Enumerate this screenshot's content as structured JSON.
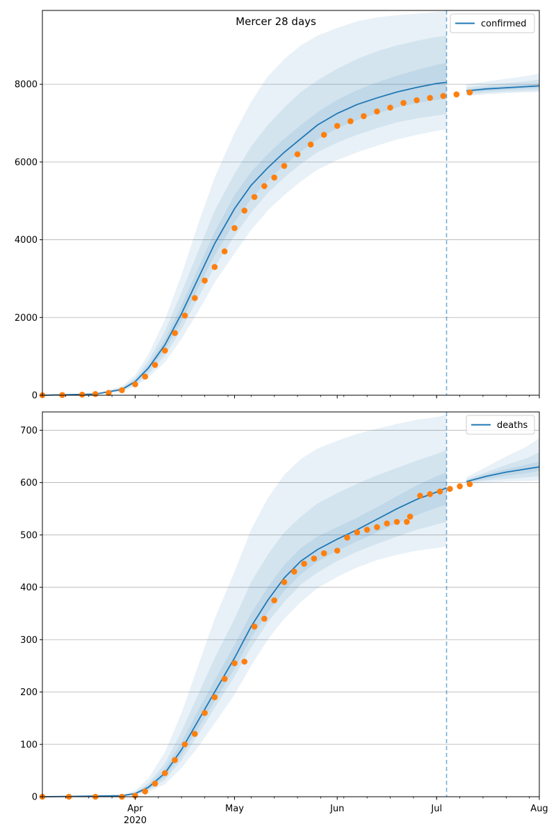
{
  "chart_data": {
    "title": "Mercer 28 days",
    "x_axis": {
      "start_date": "2020-03-04",
      "end_date": "2020-08-01",
      "tick_labels": [
        {
          "date": "2020-04-01",
          "label": "Apr",
          "sublabel": "2020"
        },
        {
          "date": "2020-05-01",
          "label": "May",
          "sublabel": ""
        },
        {
          "date": "2020-06-01",
          "label": "Jun",
          "sublabel": ""
        },
        {
          "date": "2020-07-01",
          "label": "Jul",
          "sublabel": ""
        },
        {
          "date": "2020-08-01",
          "label": "Aug",
          "sublabel": ""
        }
      ],
      "forecast_start_date": "2020-07-04"
    },
    "panels": [
      {
        "name": "confirmed",
        "type": "line",
        "legend": "confirmed",
        "legend_position": "top-right",
        "ylim": [
          0,
          9900
        ],
        "yticks": [
          0,
          2000,
          4000,
          6000,
          8000
        ],
        "grid": "horizontal",
        "model_line": {
          "x": [
            "2020-03-04",
            "2020-03-20",
            "2020-03-28",
            "2020-04-01",
            "2020-04-05",
            "2020-04-10",
            "2020-04-15",
            "2020-04-20",
            "2020-04-25",
            "2020-05-01",
            "2020-05-06",
            "2020-05-11",
            "2020-05-16",
            "2020-05-21",
            "2020-05-26",
            "2020-06-01",
            "2020-06-07",
            "2020-06-13",
            "2020-06-19",
            "2020-06-25",
            "2020-07-01",
            "2020-07-04",
            "2020-07-10",
            "2020-07-16",
            "2020-07-22",
            "2020-07-28",
            "2020-08-01"
          ],
          "y": [
            0,
            30,
            150,
            350,
            700,
            1300,
            2100,
            3000,
            3900,
            4800,
            5400,
            5850,
            6250,
            6600,
            6950,
            7250,
            7480,
            7650,
            7800,
            7920,
            8020,
            8050,
            7830,
            7880,
            7910,
            7940,
            7960
          ]
        },
        "bands": [
          {
            "x": [
              "2020-03-04",
              "2020-03-20",
              "2020-03-28",
              "2020-04-01",
              "2020-04-05",
              "2020-04-10",
              "2020-04-15",
              "2020-04-20",
              "2020-04-25",
              "2020-05-01",
              "2020-05-06",
              "2020-05-11",
              "2020-05-16",
              "2020-05-21",
              "2020-05-26",
              "2020-06-01",
              "2020-06-07",
              "2020-06-13",
              "2020-06-19",
              "2020-06-25",
              "2020-07-01",
              "2020-07-04",
              "2020-07-10",
              "2020-07-16",
              "2020-07-22",
              "2020-07-28",
              "2020-08-01"
            ],
            "lower": [
              0,
              20,
              90,
              230,
              450,
              850,
              1450,
              2150,
              2900,
              3650,
              4250,
              4750,
              5150,
              5500,
              5800,
              6050,
              6250,
              6420,
              6580,
              6700,
              6800,
              6850,
              7700,
              7740,
              7770,
              7790,
              7800
            ],
            "upper": [
              0,
              45,
              230,
              520,
              1050,
              1950,
              3100,
              4400,
              5600,
              6750,
              7550,
              8200,
              8650,
              9000,
              9250,
              9450,
              9620,
              9720,
              9780,
              9820,
              9860,
              9880,
              8000,
              8070,
              8140,
              8210,
              8280
            ]
          },
          {
            "x": [
              "2020-03-04",
              "2020-03-20",
              "2020-03-28",
              "2020-04-01",
              "2020-04-05",
              "2020-04-10",
              "2020-04-15",
              "2020-04-20",
              "2020-04-25",
              "2020-05-01",
              "2020-05-06",
              "2020-05-11",
              "2020-05-16",
              "2020-05-21",
              "2020-05-26",
              "2020-06-01",
              "2020-06-07",
              "2020-06-13",
              "2020-06-19",
              "2020-06-25",
              "2020-07-01",
              "2020-07-04",
              "2020-07-10",
              "2020-07-16",
              "2020-07-22",
              "2020-07-28",
              "2020-08-01"
            ],
            "lower": [
              0,
              24,
              110,
              270,
              540,
              1020,
              1700,
              2500,
              3300,
              4100,
              4700,
              5200,
              5600,
              5950,
              6250,
              6500,
              6700,
              6870,
              7020,
              7120,
              7200,
              7230,
              7740,
              7780,
              7810,
              7830,
              7840
            ],
            "upper": [
              0,
              38,
              195,
              440,
              880,
              1650,
              2650,
              3700,
              4750,
              5700,
              6400,
              6950,
              7400,
              7800,
              8100,
              8400,
              8650,
              8850,
              9000,
              9120,
              9220,
              9250,
              7920,
              7980,
              8030,
              8080,
              8120
            ]
          },
          {
            "x": [
              "2020-03-04",
              "2020-03-20",
              "2020-03-28",
              "2020-04-01",
              "2020-04-05",
              "2020-04-10",
              "2020-04-15",
              "2020-04-20",
              "2020-04-25",
              "2020-05-01",
              "2020-05-06",
              "2020-05-11",
              "2020-05-16",
              "2020-05-21",
              "2020-05-26",
              "2020-06-01",
              "2020-06-07",
              "2020-06-13",
              "2020-06-19",
              "2020-06-25",
              "2020-07-01",
              "2020-07-04",
              "2020-07-10",
              "2020-07-16",
              "2020-07-22",
              "2020-07-28",
              "2020-08-01"
            ],
            "lower": [
              0,
              27,
              130,
              310,
              620,
              1160,
              1900,
              2750,
              3600,
              4450,
              5050,
              5520,
              5920,
              6270,
              6580,
              6870,
              7080,
              7250,
              7400,
              7520,
              7600,
              7630,
              7790,
              7830,
              7860,
              7890,
              7900
            ],
            "upper": [
              0,
              34,
              170,
              390,
              780,
              1450,
              2320,
              3260,
              4200,
              5150,
              5750,
              6200,
              6600,
              6950,
              7280,
              7600,
              7850,
              8050,
              8220,
              8370,
              8500,
              8550,
              7870,
              7930,
              7960,
              7990,
              8020
            ]
          }
        ],
        "observed": {
          "x": [
            "2020-03-04",
            "2020-03-10",
            "2020-03-16",
            "2020-03-20",
            "2020-03-24",
            "2020-03-28",
            "2020-04-01",
            "2020-04-04",
            "2020-04-07",
            "2020-04-10",
            "2020-04-13",
            "2020-04-16",
            "2020-04-19",
            "2020-04-22",
            "2020-04-25",
            "2020-04-28",
            "2020-05-01",
            "2020-05-04",
            "2020-05-07",
            "2020-05-10",
            "2020-05-13",
            "2020-05-16",
            "2020-05-20",
            "2020-05-24",
            "2020-05-28",
            "2020-06-01",
            "2020-06-05",
            "2020-06-09",
            "2020-06-13",
            "2020-06-17",
            "2020-06-21",
            "2020-06-25",
            "2020-06-29",
            "2020-07-03",
            "2020-07-07",
            "2020-07-11"
          ],
          "y": [
            0,
            5,
            15,
            30,
            60,
            130,
            280,
            480,
            780,
            1150,
            1600,
            2050,
            2500,
            2950,
            3300,
            3700,
            4300,
            4750,
            5100,
            5380,
            5600,
            5900,
            6200,
            6450,
            6700,
            6930,
            7050,
            7180,
            7300,
            7400,
            7520,
            7590,
            7650,
            7700,
            7740,
            7790
          ]
        }
      },
      {
        "name": "deaths",
        "type": "line",
        "legend": "deaths",
        "legend_position": "top-right",
        "ylim": [
          0,
          735
        ],
        "yticks": [
          0,
          100,
          200,
          300,
          400,
          500,
          600,
          700
        ],
        "grid": "horizontal",
        "model_line": {
          "x": [
            "2020-03-04",
            "2020-03-28",
            "2020-04-01",
            "2020-04-05",
            "2020-04-10",
            "2020-04-15",
            "2020-04-20",
            "2020-04-25",
            "2020-05-01",
            "2020-05-06",
            "2020-05-11",
            "2020-05-16",
            "2020-05-21",
            "2020-05-26",
            "2020-06-01",
            "2020-06-07",
            "2020-06-13",
            "2020-06-19",
            "2020-06-25",
            "2020-07-01",
            "2020-07-04",
            "2020-07-10",
            "2020-07-16",
            "2020-07-22",
            "2020-07-28",
            "2020-08-01"
          ],
          "y": [
            0,
            2,
            6,
            18,
            45,
            90,
            145,
            200,
            265,
            325,
            375,
            418,
            450,
            472,
            492,
            510,
            530,
            550,
            568,
            582,
            590,
            602,
            612,
            620,
            626,
            630
          ]
        },
        "bands": [
          {
            "x": [
              "2020-03-04",
              "2020-03-28",
              "2020-04-01",
              "2020-04-05",
              "2020-04-10",
              "2020-04-15",
              "2020-04-20",
              "2020-04-25",
              "2020-05-01",
              "2020-05-06",
              "2020-05-11",
              "2020-05-16",
              "2020-05-21",
              "2020-05-26",
              "2020-06-01",
              "2020-06-07",
              "2020-06-13",
              "2020-06-19",
              "2020-06-25",
              "2020-07-01",
              "2020-07-04",
              "2020-07-10",
              "2020-07-16",
              "2020-07-22",
              "2020-07-28",
              "2020-08-01"
            ],
            "lower": [
              0,
              1,
              3,
              9,
              24,
              55,
              95,
              140,
              195,
              250,
              300,
              340,
              372,
              398,
              420,
              438,
              452,
              462,
              470,
              475,
              478,
              598,
              600,
              602,
              603,
              604
            ],
            "upper": [
              0,
              4,
              12,
              35,
              85,
              160,
              250,
              340,
              430,
              510,
              570,
              615,
              645,
              665,
              680,
              693,
              703,
              712,
              720,
              725,
              730,
              610,
              630,
              650,
              668,
              685
            ]
          },
          {
            "x": [
              "2020-03-04",
              "2020-03-28",
              "2020-04-01",
              "2020-04-05",
              "2020-04-10",
              "2020-04-15",
              "2020-04-20",
              "2020-04-25",
              "2020-05-01",
              "2020-05-06",
              "2020-05-11",
              "2020-05-16",
              "2020-05-21",
              "2020-05-26",
              "2020-06-01",
              "2020-06-07",
              "2020-06-13",
              "2020-06-19",
              "2020-06-25",
              "2020-07-01",
              "2020-07-04",
              "2020-07-10",
              "2020-07-16",
              "2020-07-22",
              "2020-07-28",
              "2020-08-01"
            ],
            "lower": [
              0,
              1,
              4,
              12,
              32,
              70,
              118,
              170,
              230,
              285,
              333,
              372,
              405,
              428,
              450,
              468,
              483,
              497,
              510,
              520,
              525,
              600,
              604,
              607,
              610,
              612
            ],
            "upper": [
              0,
              3,
              9,
              26,
              64,
              125,
              195,
              265,
              340,
              410,
              462,
              505,
              535,
              560,
              580,
              598,
              614,
              628,
              642,
              655,
              662,
              606,
              620,
              634,
              646,
              658
            ]
          },
          {
            "x": [
              "2020-03-04",
              "2020-03-28",
              "2020-04-01",
              "2020-04-05",
              "2020-04-10",
              "2020-04-15",
              "2020-04-20",
              "2020-04-25",
              "2020-05-01",
              "2020-05-06",
              "2020-05-11",
              "2020-05-16",
              "2020-05-21",
              "2020-05-26",
              "2020-06-01",
              "2020-06-07",
              "2020-06-13",
              "2020-06-19",
              "2020-06-25",
              "2020-07-01",
              "2020-07-04",
              "2020-07-10",
              "2020-07-16",
              "2020-07-22",
              "2020-07-28",
              "2020-08-01"
            ],
            "lower": [
              0,
              1,
              5,
              14,
              38,
              80,
              130,
              183,
              245,
              303,
              352,
              393,
              425,
              449,
              470,
              488,
              505,
              522,
              538,
              552,
              558,
              600,
              607,
              613,
              618,
              622
            ],
            "upper": [
              0,
              2,
              7,
              22,
              54,
              104,
              165,
              222,
              290,
              350,
              400,
              443,
              475,
              497,
              515,
              533,
              553,
              574,
              595,
              612,
              620,
              604,
              616,
              626,
              634,
              640
            ]
          }
        ],
        "observed": {
          "x": [
            "2020-03-04",
            "2020-03-12",
            "2020-03-20",
            "2020-03-28",
            "2020-04-01",
            "2020-04-04",
            "2020-04-07",
            "2020-04-10",
            "2020-04-13",
            "2020-04-16",
            "2020-04-19",
            "2020-04-22",
            "2020-04-25",
            "2020-04-28",
            "2020-05-01",
            "2020-05-04",
            "2020-05-07",
            "2020-05-10",
            "2020-05-13",
            "2020-05-16",
            "2020-05-19",
            "2020-05-22",
            "2020-05-25",
            "2020-05-28",
            "2020-06-01",
            "2020-06-04",
            "2020-06-07",
            "2020-06-10",
            "2020-06-13",
            "2020-06-16",
            "2020-06-19",
            "2020-06-22",
            "2020-06-23",
            "2020-06-26",
            "2020-06-29",
            "2020-07-02",
            "2020-07-05",
            "2020-07-08",
            "2020-07-11"
          ],
          "y": [
            0,
            0,
            0,
            0,
            2,
            10,
            25,
            45,
            70,
            100,
            120,
            160,
            190,
            225,
            255,
            258,
            325,
            340,
            375,
            410,
            430,
            445,
            455,
            465,
            470,
            495,
            505,
            510,
            515,
            522,
            525,
            525,
            535,
            575,
            578,
            583,
            588,
            593,
            597
          ]
        }
      }
    ]
  }
}
